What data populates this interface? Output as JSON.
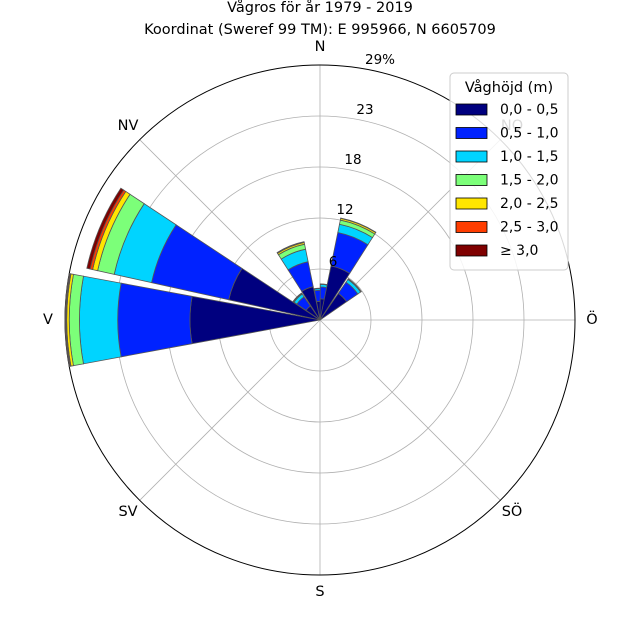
{
  "chart_data": {
    "type": "windrose",
    "title": "Vågros för år 1979 - 2019",
    "subtitle": "Koordinat (Sweref 99 TM): E 995966, N 6605709",
    "directions": [
      "N",
      "NO",
      "Ö",
      "SÖ",
      "S",
      "SV",
      "V",
      "NV"
    ],
    "ring_labels": [
      "6",
      "12",
      "18",
      "23",
      "29%"
    ],
    "rmax": 30,
    "grid": true,
    "legend": {
      "title": "Våghöjd (m)",
      "placement": "top-right",
      "entries": [
        "0,0 - 0,5",
        "0,5 - 1,0",
        "1,0 - 1,5",
        "1,5 - 2,0",
        "2,0 - 2,5",
        "2,5 - 3,0",
        "≥ 3,0"
      ]
    },
    "colors": [
      "#00007f",
      "#0022ff",
      "#00d4ff",
      "#7cff79",
      "#ffe600",
      "#ff3d00",
      "#7f0000"
    ],
    "sectors": [
      {
        "direction_deg": 0,
        "values": [
          2.2,
          1.3,
          0.2,
          0.05,
          0.0,
          0.0,
          0.0
        ]
      },
      {
        "direction_deg": 11,
        "values": [
          2.5,
          1.4,
          0.3,
          0.05,
          0.0,
          0.0,
          0.0
        ]
      },
      {
        "direction_deg": 22,
        "values": [
          6.5,
          4.0,
          1.0,
          0.5,
          0.2,
          0.05,
          0.0
        ]
      },
      {
        "direction_deg": 45,
        "values": [
          3.8,
          1.6,
          0.4,
          0.1,
          0.0,
          0.0,
          0.0
        ]
      },
      {
        "direction_deg": -22,
        "values": [
          4.0,
          3.0,
          1.5,
          0.6,
          0.2,
          0.1,
          0.0
        ]
      },
      {
        "direction_deg": -45,
        "values": [
          2.0,
          1.3,
          0.4,
          0.1,
          0.05,
          0.0,
          0.0
        ]
      },
      {
        "direction_deg": -67,
        "values": [
          11.0,
          9.3,
          4.5,
          2.0,
          0.6,
          0.3,
          0.4
        ]
      },
      {
        "direction_deg": -90,
        "values": [
          15.3,
          8.5,
          4.5,
          1.2,
          0.3,
          0.1,
          0.1
        ]
      }
    ]
  }
}
